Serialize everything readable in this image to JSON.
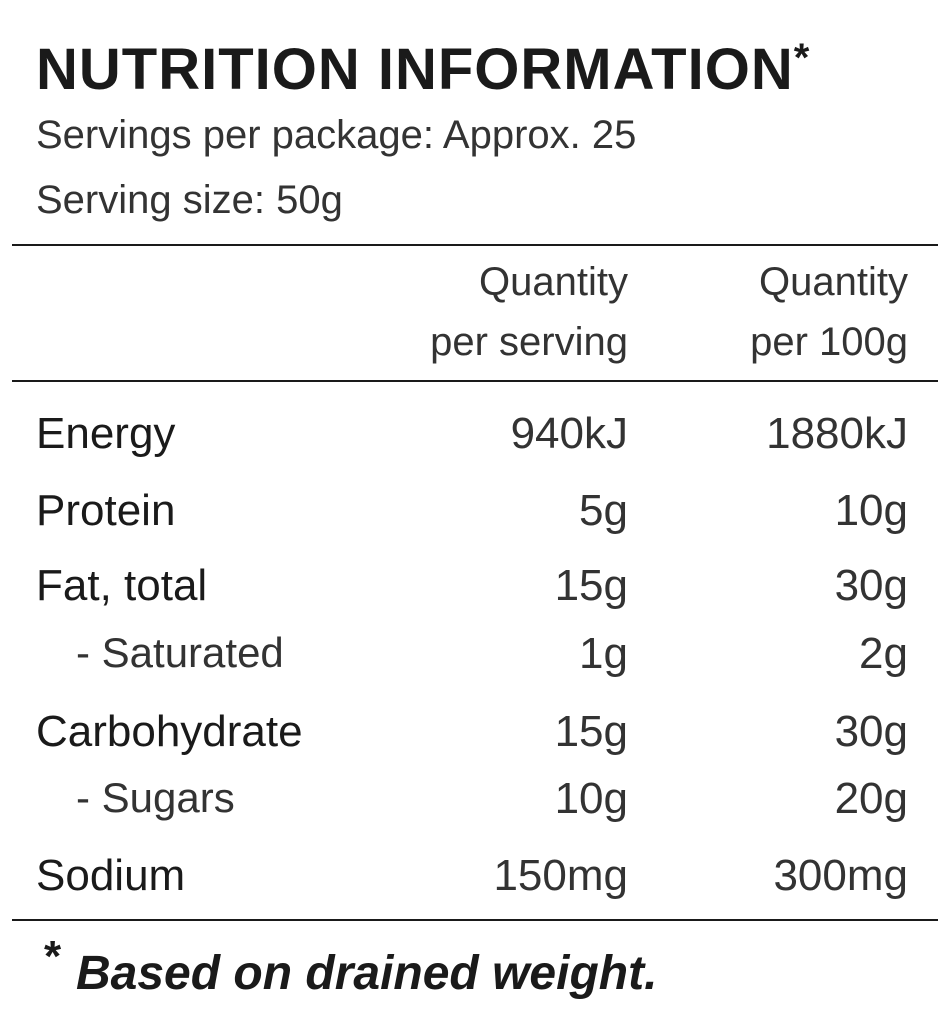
{
  "header": {
    "title": "NUTRITION INFORMATION",
    "title_mark": "*",
    "servings_per_package": "Servings per package: Approx. 25",
    "serving_size": "Serving size: 50g"
  },
  "table": {
    "columns": [
      [
        "Quantity",
        "per serving"
      ],
      [
        "Quantity",
        "per 100g"
      ]
    ],
    "rows": [
      {
        "label": "Energy",
        "sub": false,
        "values": [
          "940kJ",
          "1880kJ"
        ]
      },
      {
        "label": "Protein",
        "sub": false,
        "values": [
          "5g",
          "10g"
        ]
      },
      {
        "label": "Fat, total",
        "sub": false,
        "values": [
          "15g",
          "30g"
        ]
      },
      {
        "label": "- Saturated",
        "sub": true,
        "values": [
          "1g",
          "2g"
        ]
      },
      {
        "label": "Carbohydrate",
        "sub": false,
        "values": [
          "15g",
          "30g"
        ]
      },
      {
        "label": "- Sugars",
        "sub": true,
        "values": [
          "10g",
          "20g"
        ]
      },
      {
        "label": "Sodium",
        "sub": false,
        "values": [
          "150mg",
          "300mg"
        ]
      }
    ]
  },
  "footnote": {
    "mark": "*",
    "text": "Based on drained weight."
  }
}
